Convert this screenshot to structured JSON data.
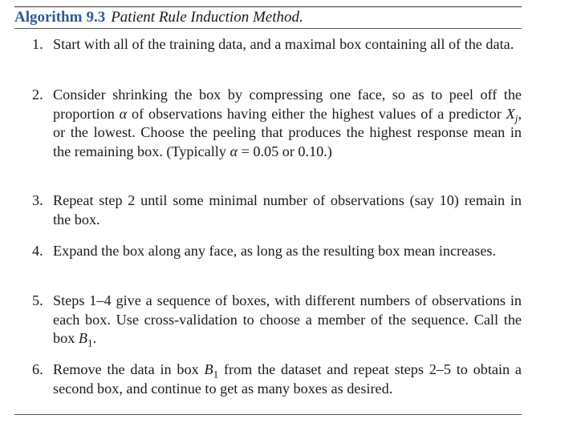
{
  "algorithm": {
    "label": "Algorithm",
    "number": "9.3",
    "title": "Patient Rule Induction Method."
  },
  "steps": [
    {
      "number": "1.",
      "segments": [
        {
          "text": "Start with all of the training data, and a maximal box containing all of the data."
        }
      ]
    },
    {
      "number": "2.",
      "segments": [
        {
          "text": "Consider shrinking the box by compressing one face, so as to peel off the proportion "
        },
        {
          "text": "α",
          "math": true
        },
        {
          "text": " of observations having either the highest values of a predictor "
        },
        {
          "text": "X",
          "math": true
        },
        {
          "text": "j",
          "math": true,
          "sub": true
        },
        {
          "text": ", or the lowest. Choose the peeling that produces the highest response mean in the remaining box. (Typically "
        },
        {
          "text": "α",
          "math": true
        },
        {
          "text": " = 0.05 or 0.10.)"
        }
      ]
    },
    {
      "number": "3.",
      "segments": [
        {
          "text": "Repeat step 2 until some minimal number of observations (say 10) remain in the box."
        }
      ]
    },
    {
      "number": "4.",
      "segments": [
        {
          "text": "Expand the box along any face, as long as the resulting box mean increases."
        }
      ]
    },
    {
      "number": "5.",
      "segments": [
        {
          "text": "Steps 1–4 give a sequence of boxes, with different numbers of observations in each box. Use cross-validation to choose a member of the sequence. Call the box "
        },
        {
          "text": "B",
          "math": true
        },
        {
          "text": "1",
          "sub": true
        },
        {
          "text": "."
        }
      ]
    },
    {
      "number": "6.",
      "segments": [
        {
          "text": "Remove the data in box "
        },
        {
          "text": "B",
          "math": true
        },
        {
          "text": "1",
          "sub": true
        },
        {
          "text": " from the dataset and repeat steps 2–5 to obtain a second box, and continue to get as many boxes as desired."
        }
      ]
    }
  ]
}
